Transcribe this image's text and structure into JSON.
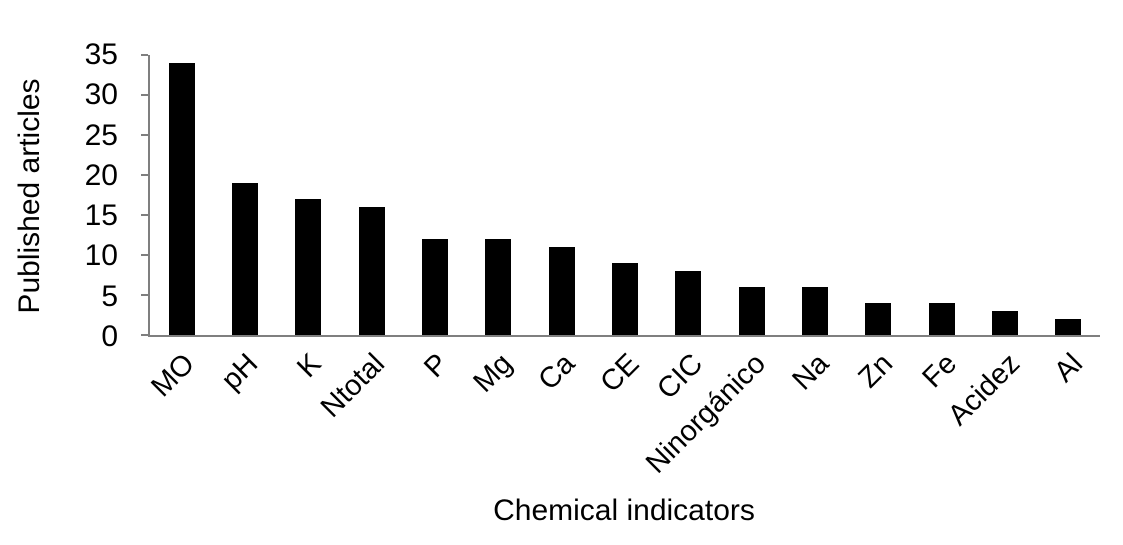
{
  "chart_data": {
    "type": "bar",
    "categories": [
      "MO",
      "pH",
      "K",
      "Ntotal",
      "P",
      "Mg",
      "Ca",
      "CE",
      "CIC",
      "Ninorgánico",
      "Na",
      "Zn",
      "Fe",
      "Acidez",
      "Al"
    ],
    "values": [
      34,
      19,
      17,
      16,
      12,
      12,
      11,
      9,
      8,
      6,
      6,
      4,
      4,
      3,
      2
    ],
    "xlabel": "Chemical indicators",
    "ylabel": "Published articles",
    "ylim": [
      0,
      35
    ],
    "yticks": [
      0,
      5,
      10,
      15,
      20,
      25,
      30,
      35
    ],
    "bar_color": "#000000",
    "axis_color": "#7f7f7f",
    "text_color": "#000000",
    "grid": false,
    "legend": null
  }
}
